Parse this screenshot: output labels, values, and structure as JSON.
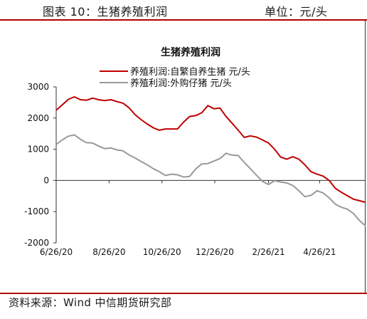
{
  "figure": {
    "label": "图表 10：生猪养殖利润",
    "unit": "单位：元/头",
    "source": "资料来源：Wind 中信期货研究部"
  },
  "chart_data": {
    "type": "line",
    "title": "生猪养殖利润",
    "x": [
      "2020-06-26",
      "2020-07-03",
      "2020-07-10",
      "2020-07-17",
      "2020-07-24",
      "2020-07-31",
      "2020-08-07",
      "2020-08-14",
      "2020-08-21",
      "2020-08-28",
      "2020-09-04",
      "2020-09-11",
      "2020-09-18",
      "2020-09-25",
      "2020-10-02",
      "2020-10-09",
      "2020-10-16",
      "2020-10-23",
      "2020-10-30",
      "2020-11-06",
      "2020-11-13",
      "2020-11-20",
      "2020-11-27",
      "2020-12-04",
      "2020-12-11",
      "2020-12-18",
      "2020-12-25",
      "2021-01-01",
      "2021-01-08",
      "2021-01-15",
      "2021-01-22",
      "2021-01-29",
      "2021-02-05",
      "2021-02-12",
      "2021-02-19",
      "2021-02-26",
      "2021-03-05",
      "2021-03-12",
      "2021-03-19",
      "2021-03-26",
      "2021-04-02",
      "2021-04-09",
      "2021-04-16",
      "2021-04-23",
      "2021-04-30",
      "2021-05-07",
      "2021-05-14",
      "2021-05-21",
      "2021-05-28",
      "2021-06-04",
      "2021-06-11",
      "2021-06-18"
    ],
    "series": [
      {
        "name": "养殖利润:自繁自养生猪 元/头",
        "color": "#c00000",
        "values": [
          2250,
          2420,
          2600,
          2680,
          2590,
          2570,
          2640,
          2590,
          2560,
          2590,
          2530,
          2480,
          2330,
          2110,
          1950,
          1810,
          1690,
          1610,
          1650,
          1650,
          1650,
          1870,
          2050,
          2080,
          2170,
          2400,
          2300,
          2320,
          2050,
          1830,
          1610,
          1380,
          1430,
          1390,
          1300,
          1200,
          1000,
          750,
          680,
          760,
          680,
          500,
          280,
          200,
          140,
          0,
          -250,
          -380,
          -490,
          -600,
          -650,
          -700
        ]
      },
      {
        "name": "养殖利润:外购仔猪 元/头",
        "color": "#999999",
        "values": [
          1150,
          1300,
          1420,
          1460,
          1320,
          1210,
          1200,
          1100,
          1020,
          1040,
          980,
          950,
          820,
          720,
          610,
          500,
          380,
          280,
          160,
          200,
          180,
          110,
          130,
          370,
          530,
          540,
          620,
          700,
          870,
          810,
          800,
          580,
          380,
          170,
          -30,
          -130,
          -10,
          -50,
          -80,
          -160,
          -330,
          -520,
          -480,
          -330,
          -400,
          -560,
          -760,
          -860,
          -920,
          -1060,
          -1290,
          -1460
        ]
      }
    ],
    "xticks": [
      "6/26/20",
      "8/26/20",
      "10/26/20",
      "12/26/20",
      "2/26/21",
      "4/26/21"
    ],
    "xtick_dates": [
      "2020-06-26",
      "2020-08-26",
      "2020-10-26",
      "2020-12-26",
      "2021-02-26",
      "2021-04-26"
    ],
    "yticks": [
      3000,
      2000,
      1000,
      0,
      -1000,
      -2000
    ],
    "ylim": [
      -2000,
      3000
    ],
    "xlim": [
      "2020-06-26",
      "2021-06-18"
    ],
    "legend_position": "top",
    "grid": false
  }
}
